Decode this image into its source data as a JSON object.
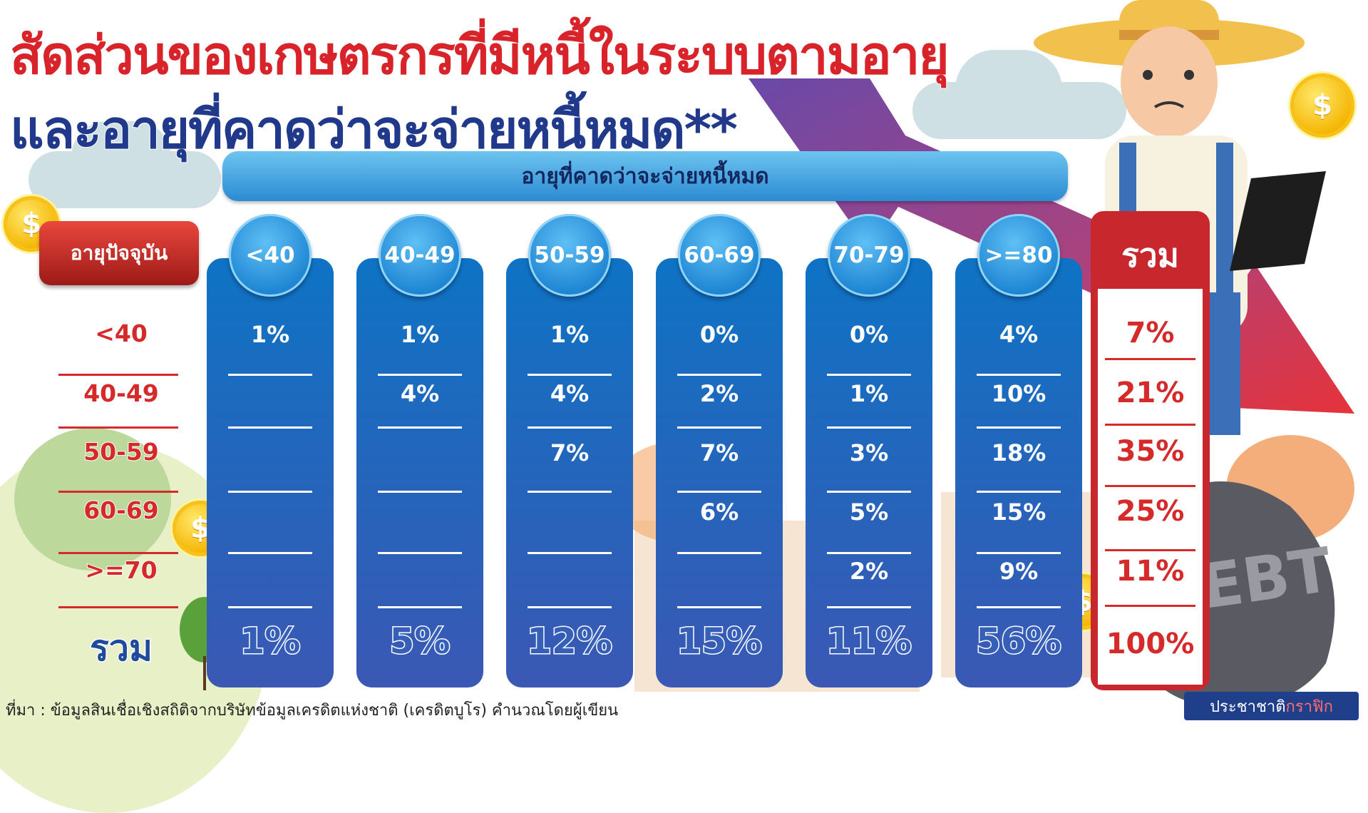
{
  "title": {
    "line1": "สัดส่วนของเกษตรกรที่มีหนี้ในระบบตามอายุ",
    "line2": "และอายุที่คาดว่าจะจ่ายหนี้หมด**"
  },
  "column_group_label": "อายุที่คาดว่าจะจ่ายหนี้หมด",
  "row_group_label": "อายุปัจจุบัน",
  "row_labels": [
    "<40",
    "40-49",
    "50-59",
    "60-69",
    ">=70"
  ],
  "total_label": "รวม",
  "columns": [
    {
      "label": "<40",
      "cells": [
        "1%",
        "",
        "",
        "",
        ""
      ],
      "total": "1%"
    },
    {
      "label": "40-49",
      "cells": [
        "1%",
        "4%",
        "",
        "",
        ""
      ],
      "total": "5%"
    },
    {
      "label": "50-59",
      "cells": [
        "1%",
        "4%",
        "7%",
        "",
        ""
      ],
      "total": "12%"
    },
    {
      "label": "60-69",
      "cells": [
        "0%",
        "2%",
        "7%",
        "6%",
        ""
      ],
      "total": "15%"
    },
    {
      "label": "70-79",
      "cells": [
        "0%",
        "1%",
        "3%",
        "5%",
        "2%"
      ],
      "total": "11%"
    },
    {
      "label": ">=80",
      "cells": [
        "4%",
        "10%",
        "18%",
        "15%",
        "9%"
      ],
      "total": "56%"
    }
  ],
  "row_totals": [
    "7%",
    "21%",
    "35%",
    "25%",
    "11%"
  ],
  "grand_total": "100%",
  "source": "ที่มา : ข้อมูลสินเชื่อเชิงสถิติจากบริษัทข้อมูลเครดิตแห่งชาติ (เครดิตบูโร) คำนวณโดยผู้เขียน",
  "brand": {
    "part1": "ประชาชาติ",
    "part2": "กราฟิก"
  },
  "bag_text": "DEBT",
  "coin_symbol": "$",
  "colors": {
    "red": "#d62a2a",
    "navy": "#21398a",
    "blue": "#1f86d3"
  }
}
